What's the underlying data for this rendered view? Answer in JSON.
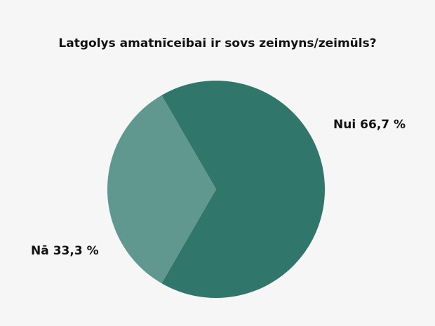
{
  "chart_data": {
    "type": "pie",
    "title": "Latgolys amatnīceibai ir sovs zeimyns/zeimūls?",
    "categories": [
      "Nui",
      "Nā"
    ],
    "values": [
      66.7,
      33.3
    ],
    "value_labels": [
      "66,7 %",
      "33,3 %"
    ],
    "colors": [
      "#31766b",
      "#60988f"
    ]
  }
}
